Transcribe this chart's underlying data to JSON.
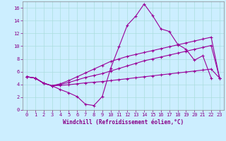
{
  "xlabel": "Windchill (Refroidissement éolien,°C)",
  "bg_color": "#cceeff",
  "line_color": "#990099",
  "xlim": [
    -0.5,
    23.5
  ],
  "ylim": [
    0,
    17
  ],
  "xticks": [
    0,
    1,
    2,
    3,
    4,
    5,
    6,
    7,
    8,
    9,
    10,
    11,
    12,
    13,
    14,
    15,
    16,
    17,
    18,
    19,
    20,
    21,
    22,
    23
  ],
  "yticks": [
    0,
    2,
    4,
    6,
    8,
    10,
    12,
    14,
    16
  ],
  "lines": [
    {
      "x": [
        0,
        1,
        2,
        3,
        4,
        5,
        6,
        7,
        8,
        9,
        10,
        11,
        12,
        13,
        14,
        15,
        16,
        17,
        18,
        19,
        20,
        21,
        22
      ],
      "y": [
        5.2,
        5.0,
        4.2,
        3.8,
        3.2,
        2.7,
        2.1,
        0.9,
        0.7,
        2.1,
        6.5,
        9.9,
        13.3,
        14.7,
        16.6,
        14.8,
        12.7,
        12.3,
        10.3,
        9.5,
        7.8,
        8.5,
        5.0
      ]
    },
    {
      "x": [
        0,
        1,
        2,
        3,
        4,
        5,
        6,
        7,
        8,
        9,
        10,
        11,
        12,
        13,
        14,
        15,
        16,
        17,
        18,
        19,
        20,
        21,
        22,
        23
      ],
      "y": [
        5.2,
        5.0,
        4.2,
        3.8,
        3.85,
        3.95,
        4.1,
        4.25,
        4.35,
        4.45,
        4.6,
        4.75,
        4.9,
        5.05,
        5.2,
        5.35,
        5.5,
        5.65,
        5.8,
        5.95,
        6.1,
        6.25,
        6.4,
        5.0
      ]
    },
    {
      "x": [
        0,
        1,
        2,
        3,
        4,
        5,
        6,
        7,
        8,
        9,
        10,
        11,
        12,
        13,
        14,
        15,
        16,
        17,
        18,
        19,
        20,
        21,
        22,
        23
      ],
      "y": [
        5.2,
        5.0,
        4.2,
        3.8,
        4.0,
        4.3,
        4.7,
        5.1,
        5.4,
        5.7,
        6.1,
        6.5,
        6.9,
        7.3,
        7.7,
        8.0,
        8.3,
        8.6,
        8.9,
        9.2,
        9.5,
        9.8,
        10.1,
        5.0
      ]
    },
    {
      "x": [
        0,
        1,
        2,
        3,
        4,
        5,
        6,
        7,
        8,
        9,
        10,
        11,
        12,
        13,
        14,
        15,
        16,
        17,
        18,
        19,
        20,
        21,
        22,
        23
      ],
      "y": [
        5.2,
        5.0,
        4.2,
        3.8,
        4.1,
        4.6,
        5.2,
        5.8,
        6.4,
        7.0,
        7.6,
        8.0,
        8.4,
        8.7,
        9.0,
        9.3,
        9.6,
        9.9,
        10.2,
        10.5,
        10.8,
        11.1,
        11.4,
        5.0
      ]
    }
  ],
  "marker": "+",
  "markersize": 3,
  "linewidth": 0.8,
  "grid_color": "#aadddd",
  "tick_fontsize": 5,
  "label_fontsize": 5.5,
  "tick_color": "#880088",
  "label_color": "#880088",
  "spine_color": "#888888"
}
